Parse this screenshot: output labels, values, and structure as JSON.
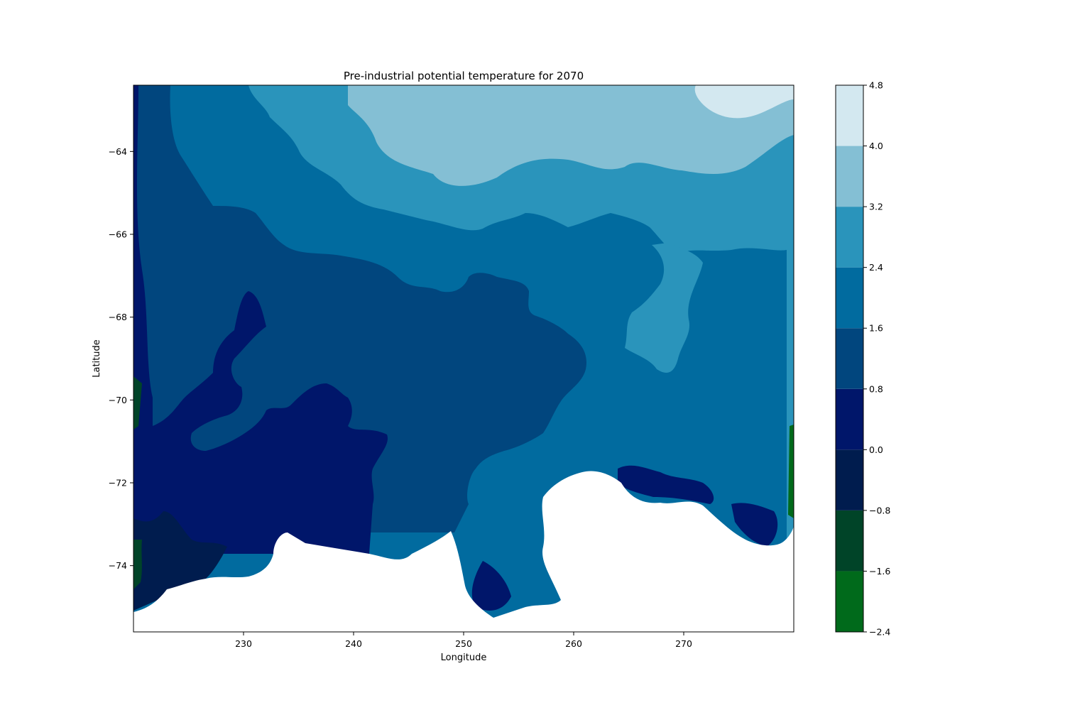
{
  "chart_data": {
    "type": "heatmap",
    "title": "Pre-industrial potential temperature for 2070",
    "xlabel": "Longitude",
    "ylabel": "Latitude",
    "xlim": [
      220,
      280
    ],
    "ylim": [
      -75.6,
      -62.4
    ],
    "xticks": [
      230,
      240,
      250,
      260,
      270
    ],
    "yticks": [
      -64,
      -66,
      -68,
      -70,
      -72,
      -74
    ],
    "grid": false,
    "colorbar": {
      "placement": "right",
      "levels": [
        -2.4,
        -1.6,
        -0.8,
        0.0,
        0.8,
        1.6,
        2.4,
        3.2,
        4.0,
        4.8
      ],
      "tick_labels": [
        "−2.4",
        "−1.6",
        "−0.8",
        "0.0",
        "0.8",
        "1.6",
        "2.4",
        "3.2",
        "4.0",
        "4.8"
      ],
      "colors": [
        "#006a1b",
        "#004428",
        "#001c4e",
        "#00166a",
        "#01467e",
        "#016b9f",
        "#2a94bb",
        "#84bfd4",
        "#d3e8f0"
      ]
    },
    "land_color": "#ffffff"
  }
}
